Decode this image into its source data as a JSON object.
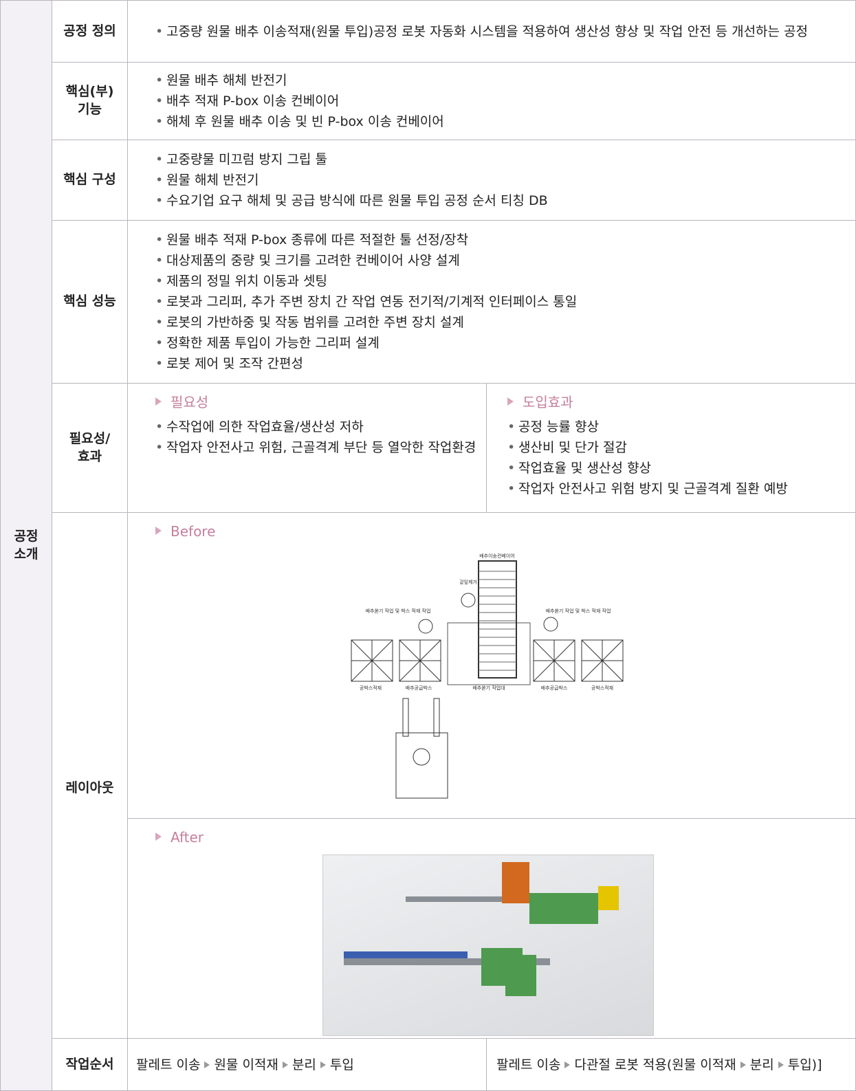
{
  "section": "공정\n소개",
  "rows": [
    {
      "label": "공정 정의",
      "items": [
        "고중량 원물 배추 이송적재(원물 투입)공정 로봇 자동화 시스템을 적용하여 생산성 향상 및 작업 안전 등 개선하는 공정"
      ]
    },
    {
      "label": "핵심(부)\n기능",
      "items": [
        "원물 배추 해체 반전기",
        "배추 적재 P-box 이송 컨베이어",
        "해체 후 원물 배추 이송 및 빈 P-box 이송 컨베이어"
      ]
    },
    {
      "label": "핵심 구성",
      "items": [
        "고중량물 미끄럼 방지 그립 툴",
        "원물 해체 반전기",
        "수요기업 요구 해체 및 공급 방식에 따른 원물 투입 공정 순서 티칭 DB"
      ]
    },
    {
      "label": "핵심 성능",
      "items": [
        "원물 배추 적재 P-box 종류에 따른 적절한 툴 선정/장착",
        "대상제품의 중량 및 크기를 고려한 컨베이어 사양 설계",
        "제품의 정밀 위치 이동과 셋팅",
        "로봇과 그리퍼, 추가 주변 장치 간 작업 연동 전기적/기계적 인터페이스 통일",
        "로봇의 가반하중 및 작동 범위를 고려한 주변 장치 설계",
        "정확한 제품 투입이 가능한 그리퍼 설계",
        "로봇 제어 및 조작 간편성"
      ]
    }
  ],
  "need": {
    "label": "필요성/\n효과",
    "left": {
      "heading": "필요성",
      "items": [
        "수작업에 의한 작업효율/생산성 저하",
        "작업자 안전사고 위험, 근골격계 부단 등 열악한 작업환경"
      ]
    },
    "right": {
      "heading": "도입효과",
      "items": [
        "공정 능률 향상",
        "생산비 및 단가 절감",
        "작업효율 및 생산성 향상",
        "작업자 안전사고 위험 방지 및 근골격계 질환 예방"
      ]
    }
  },
  "layout": {
    "label": "레이아웃",
    "before": "Before",
    "after": "After",
    "diagram": {
      "conveyor": "배추이송컨베이어",
      "peel": "겉잎제거",
      "work_left": "배추쏟기 작업 및 박스 적재 작업",
      "work_right": "배추쏟기 작업 및 박스 적재 작업",
      "empty_left": "공박스적재",
      "supply_left": "배추공급박스",
      "table": "배추쏟기 작업대",
      "supply_right": "배추공급박스",
      "empty_right": "공박스적재"
    }
  },
  "order": {
    "label": "작업순서",
    "before": [
      "팔레트 이송",
      "원물 이적재",
      "분리",
      "투입"
    ],
    "after": [
      "팔레트 이송",
      "다관절 로봇 적용(원물 이적재",
      "분리",
      "투입)]"
    ]
  }
}
